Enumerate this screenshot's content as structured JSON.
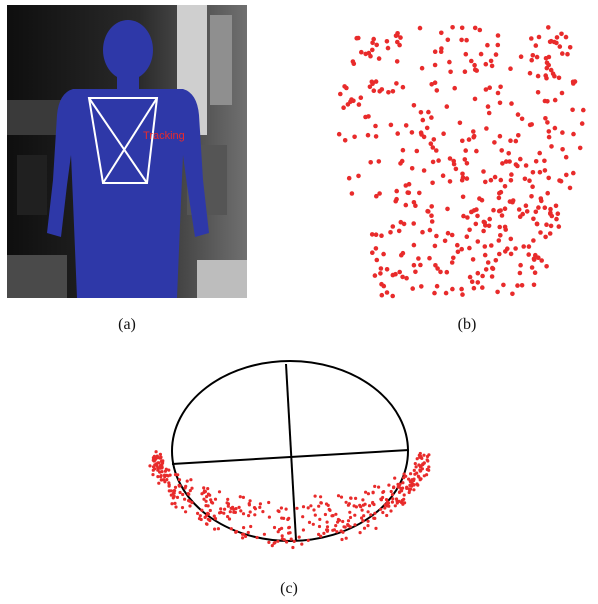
{
  "captions": {
    "a": "(a)",
    "b": "(b)",
    "c": "(c)"
  },
  "panel_a": {
    "tracking_label": "Tracking"
  },
  "colors": {
    "silhouette": "#2e38a8",
    "points": "#e82b2b",
    "ellipse": "#000000",
    "frame": "#ffffff"
  }
}
